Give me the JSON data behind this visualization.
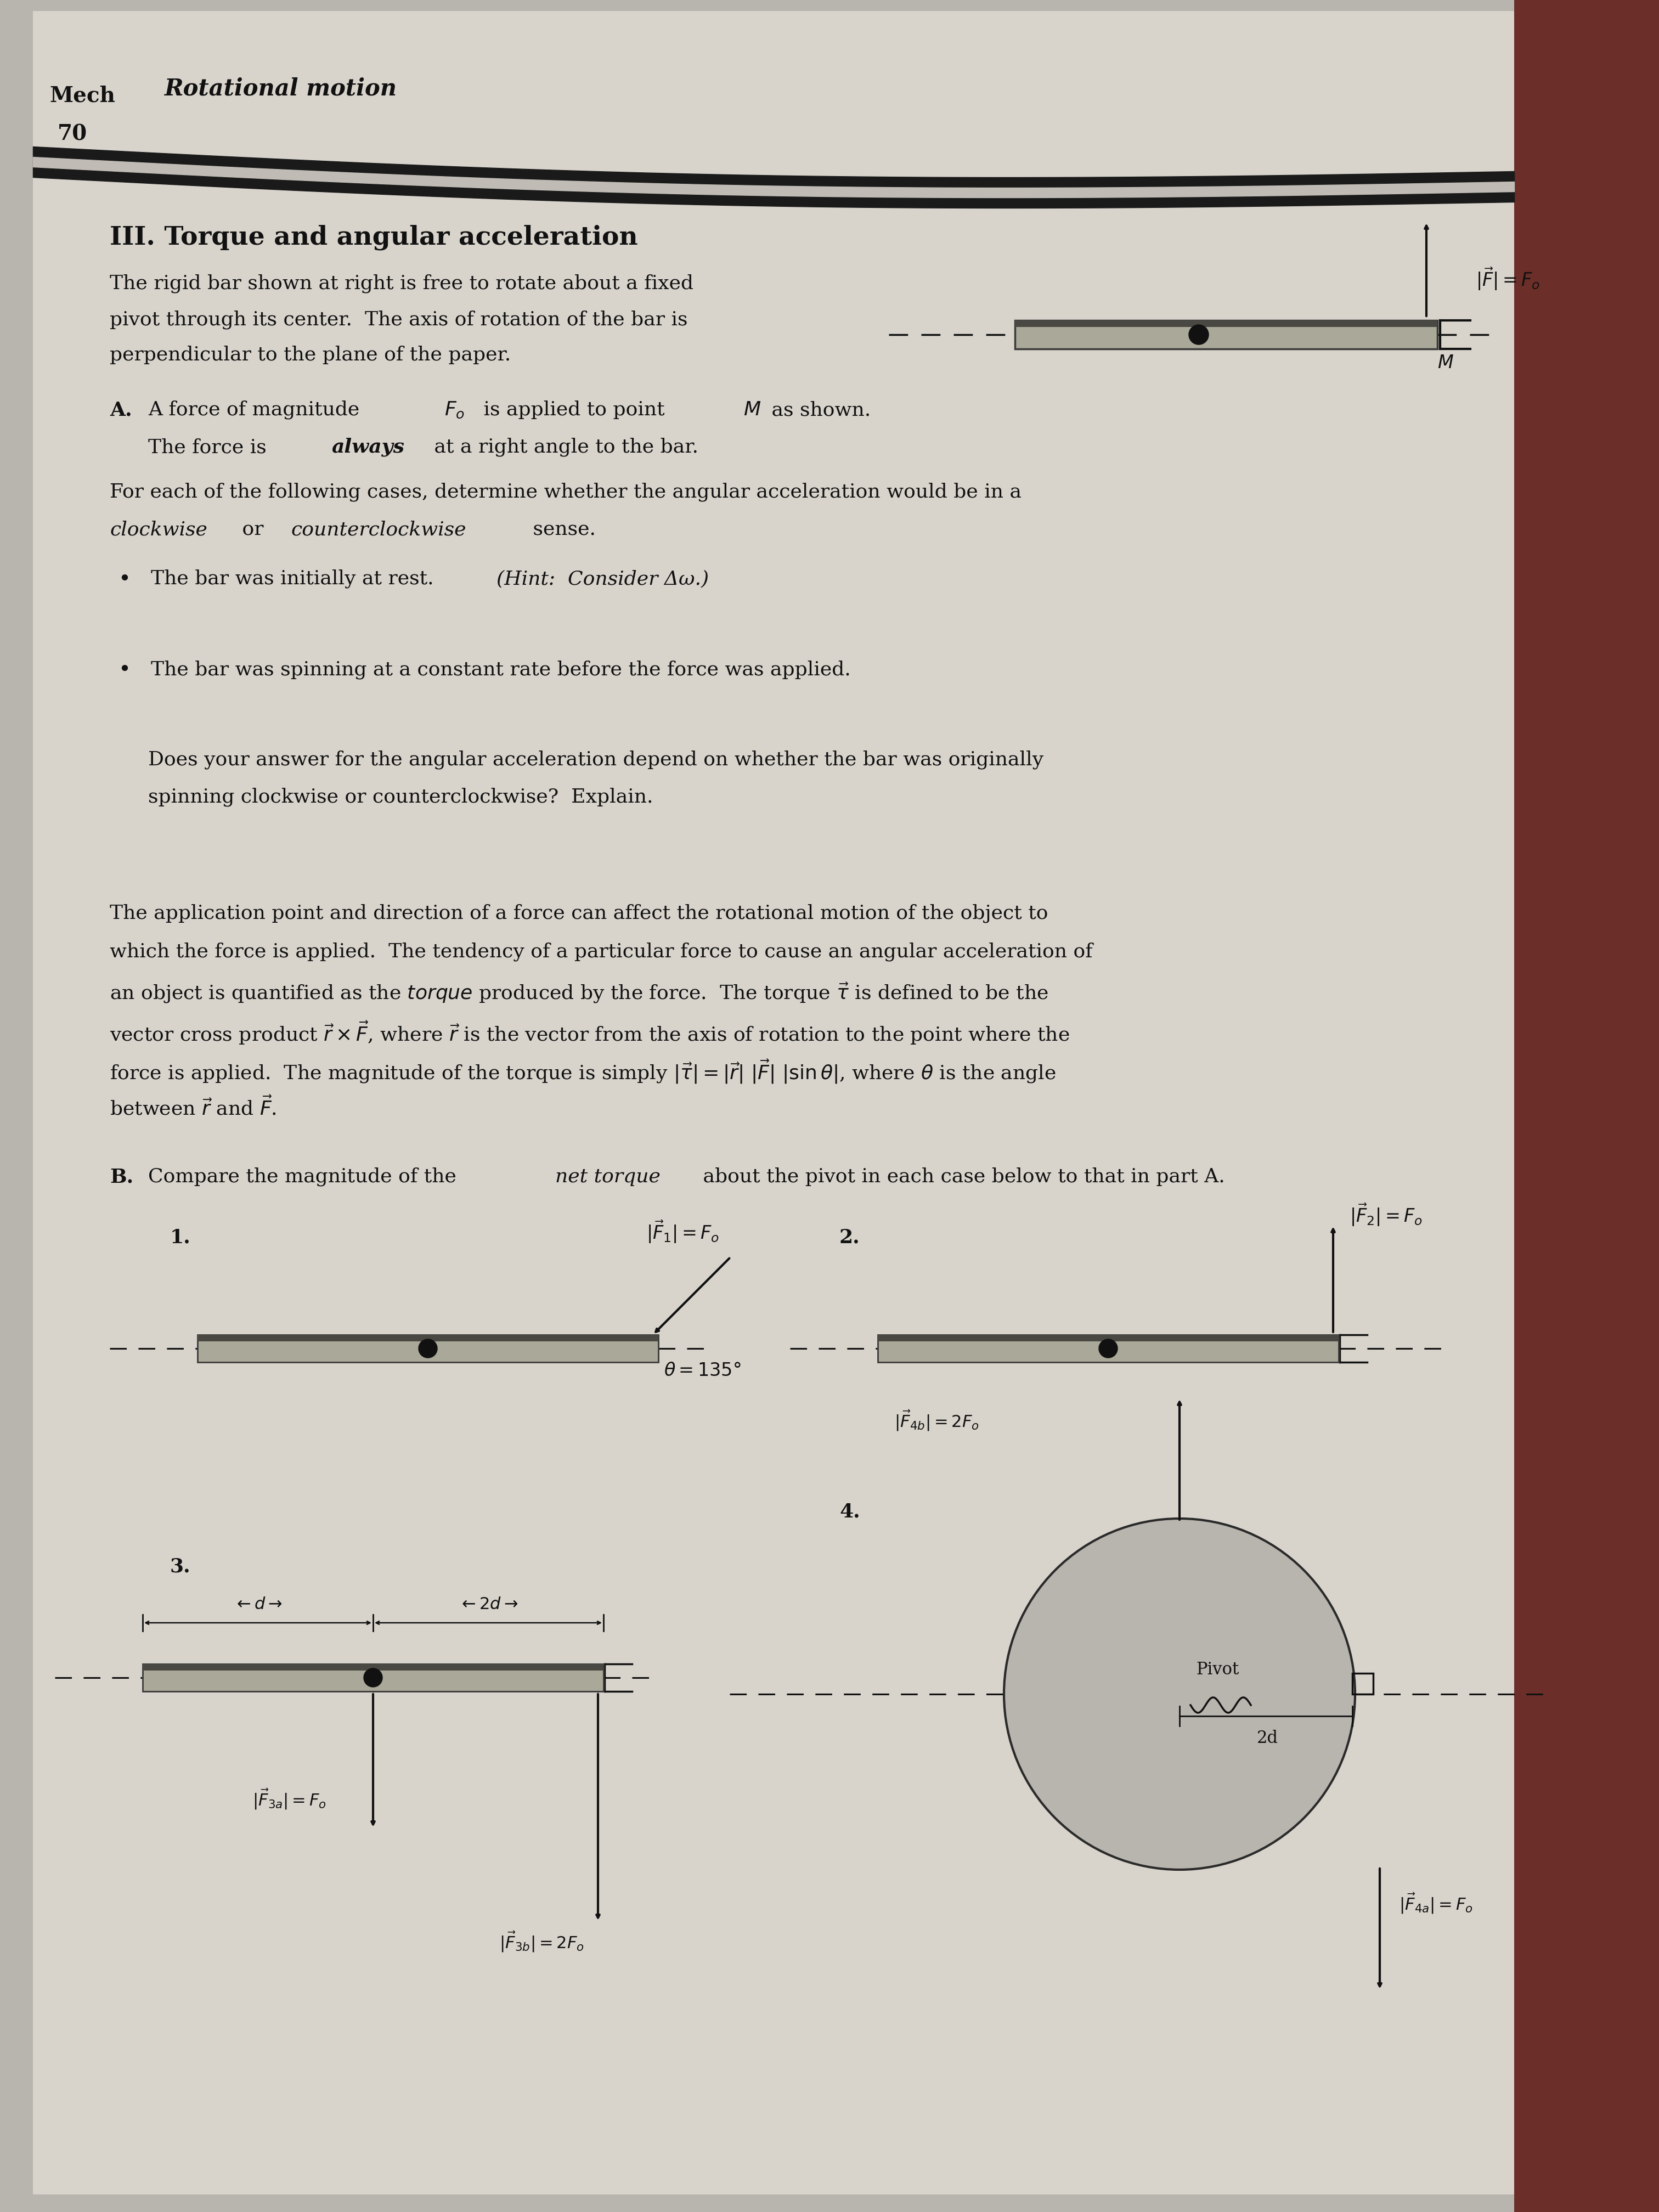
{
  "bg_color": "#b8b4ae",
  "page_color": "#d8d4cc",
  "binding_color": "#6b2e28",
  "text_color": "#111111",
  "mech_label": "Mech",
  "page_num": "70",
  "chapter_title": "Rotational motion",
  "section_title": "III. Torque and angular acceleration",
  "intro_lines": [
    "The rigid bar shown at right is free to rotate about a fixed",
    "pivot through its center.  The axis of rotation of the bar is",
    "perpendicular to the plane of the paper."
  ],
  "partA_line1a": "A force of magnitude ",
  "partA_line1b": " is applied to point ",
  "partA_line1c": " as shown.",
  "partA_line2a": "The force is ",
  "partA_line2b": "always",
  "partA_line2c": " at a right angle to the bar.",
  "cases_line1": "For each of the following cases, determine whether the angular acceleration would be in a",
  "cases_line2a": "clockwise",
  "cases_line2b": " or ",
  "cases_line2c": "counterclockwise",
  "cases_line2d": " sense.",
  "bullet1a": "The bar was initially at rest.  ",
  "bullet1b": "(Hint:  Consider Δω.)",
  "bullet2": "The bar was spinning at a constant rate before the force was applied.",
  "q_line1": "Does your answer for the angular acceleration depend on whether the bar was originally",
  "q_line2": "spinning clockwise or counterclockwise?  Explain.",
  "para_line1": "The application point and direction of a force can affect the rotational motion of the object to",
  "para_line2": "which the force is applied.  The tendency of a particular force to cause an angular acceleration of",
  "para_line3": "an object is quantified as the torque produced by the force.  The torque ",
  "para_line4": "vector cross product ",
  "para_line5": "force is applied.  The magnitude of the torque is simply ",
  "para_line6": "between ",
  "partB_text1": "Compare the magnitude of the ",
  "partB_text2": "net torque",
  "partB_text3": " about the pivot in each case below to that in part A.",
  "case1_theta": "θ = 135°",
  "pivot_label": "Pivot",
  "d_label": "2d"
}
